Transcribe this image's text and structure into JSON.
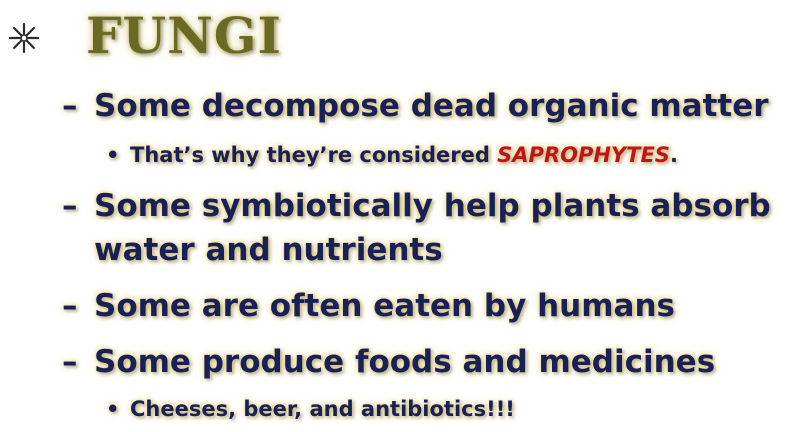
{
  "title": {
    "bullet_icon": "asterisk-bullet-icon",
    "text": "FUNGI"
  },
  "points": [
    {
      "marker": "–",
      "text": "Some decompose dead organic matter"
    },
    {
      "marker": "•",
      "text_before": "That’s why they’re considered ",
      "highlight": "SAPROPHYTES",
      "text_after": "."
    },
    {
      "marker": "–",
      "text_line1": "Some symbiotically help plants absorb",
      "text_line2": "water and nutrients"
    },
    {
      "marker": "–",
      "text": "Some are often eaten by humans"
    },
    {
      "marker": "–",
      "text": "Some produce foods and medicines"
    },
    {
      "marker": "•",
      "text": "Cheeses, beer, and antibiotics!!!"
    }
  ],
  "colors": {
    "title": "#6b6a22",
    "body": "#1a1f55",
    "highlight": "#c0141c",
    "glow": "#e6d26e"
  }
}
